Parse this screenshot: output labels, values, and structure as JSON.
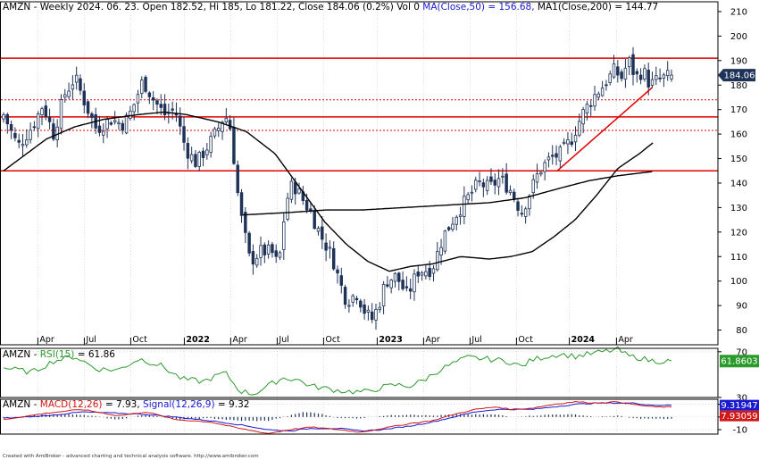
{
  "colors": {
    "background": "#ffffff",
    "frame": "#000000",
    "grid": "#c8c8c8",
    "candle_up": "#ffffff",
    "candle_down": "#1f3358",
    "candle_outline": "#1f3358",
    "ma_line": "#000000",
    "support_resistance": "#e00000",
    "rsi_line": "#2a9a2a",
    "macd_line": "#d01818",
    "signal_line": "#1a1ad0",
    "histogram": "#1f3358",
    "price_badge": "#1f3358",
    "rsi_badge": "#2a9a2a",
    "macd_badge": "#d01818",
    "signal_badge": "#1a1ad0",
    "title_blue": "#1a1ad0",
    "title_red": "#d01818",
    "title_green": "#2a9a2a"
  },
  "header": {
    "main_text": "AMZN - Weekly 2024. 06. 23. Open 182.52, Hi 185, Lo 181.22, Close 184.06 (0.2%) Vol 0",
    "ma50_text": "MA(Close,50) = 156.68,",
    "ma200_text": "MA1(Close,200) = 144.77"
  },
  "rsi_header": {
    "prefix": "AMZN - ",
    "name": "RSI(15)",
    "value_text": " = 61.86"
  },
  "macd_header": {
    "prefix": "AMZN - ",
    "macd_name": "MACD(12,26)",
    "macd_value": " = 7.93, ",
    "signal_name": "Signal(12,26,9)",
    "signal_value": " = 9.32"
  },
  "badges": {
    "price": "184.06",
    "rsi": "61.8603",
    "signal": "9.31947",
    "macd": "7.93059"
  },
  "footer": "Created with AmiBroker - advanced charting and technical analysis software. http://www.amibroker.com",
  "x_axis_labels": [
    {
      "t": 0.048,
      "label": "Apr",
      "bold": false
    },
    {
      "t": 0.113,
      "label": "Jul",
      "bold": false
    },
    {
      "t": 0.178,
      "label": "Oct",
      "bold": false
    },
    {
      "t": 0.253,
      "label": "2022",
      "bold": true
    },
    {
      "t": 0.318,
      "label": "Apr",
      "bold": false
    },
    {
      "t": 0.383,
      "label": "Jul",
      "bold": false
    },
    {
      "t": 0.448,
      "label": "Oct",
      "bold": false
    },
    {
      "t": 0.523,
      "label": "2023",
      "bold": true
    },
    {
      "t": 0.588,
      "label": "Apr",
      "bold": false
    },
    {
      "t": 0.653,
      "label": "Jul",
      "bold": false
    },
    {
      "t": 0.718,
      "label": "Oct",
      "bold": false
    },
    {
      "t": 0.792,
      "label": "2024",
      "bold": true
    },
    {
      "t": 0.858,
      "label": "Apr",
      "bold": false
    }
  ],
  "chart_data": [
    {
      "type": "candlestick",
      "title": "AMZN - Weekly",
      "ylim": [
        74,
        214
      ],
      "y_ticks": [
        80,
        90,
        100,
        110,
        120,
        130,
        140,
        150,
        160,
        170,
        180,
        190,
        200,
        210
      ],
      "close_anchors": [
        [
          0.0,
          168
        ],
        [
          0.02,
          155
        ],
        [
          0.04,
          163
        ],
        [
          0.055,
          172
        ],
        [
          0.07,
          160
        ],
        [
          0.085,
          176
        ],
        [
          0.1,
          183
        ],
        [
          0.115,
          172
        ],
        [
          0.13,
          162
        ],
        [
          0.15,
          166
        ],
        [
          0.168,
          164
        ],
        [
          0.18,
          170
        ],
        [
          0.195,
          182
        ],
        [
          0.21,
          174
        ],
        [
          0.225,
          168
        ],
        [
          0.24,
          170
        ],
        [
          0.255,
          154
        ],
        [
          0.27,
          148
        ],
        [
          0.29,
          157
        ],
        [
          0.3,
          162
        ],
        [
          0.31,
          168
        ],
        [
          0.318,
          162
        ],
        [
          0.33,
          130
        ],
        [
          0.345,
          108
        ],
        [
          0.36,
          112
        ],
        [
          0.375,
          112
        ],
        [
          0.385,
          106
        ],
        [
          0.395,
          132
        ],
        [
          0.405,
          140
        ],
        [
          0.415,
          135
        ],
        [
          0.43,
          128
        ],
        [
          0.445,
          118
        ],
        [
          0.46,
          110
        ],
        [
          0.47,
          100
        ],
        [
          0.48,
          92
        ],
        [
          0.495,
          95
        ],
        [
          0.505,
          88
        ],
        [
          0.515,
          84
        ],
        [
          0.525,
          90
        ],
        [
          0.535,
          100
        ],
        [
          0.55,
          102
        ],
        [
          0.565,
          94
        ],
        [
          0.58,
          104
        ],
        [
          0.6,
          105
        ],
        [
          0.615,
          118
        ],
        [
          0.635,
          128
        ],
        [
          0.65,
          134
        ],
        [
          0.665,
          140
        ],
        [
          0.68,
          138
        ],
        [
          0.695,
          142
        ],
        [
          0.71,
          137
        ],
        [
          0.725,
          128
        ],
        [
          0.735,
          135
        ],
        [
          0.75,
          145
        ],
        [
          0.765,
          150
        ],
        [
          0.78,
          152
        ],
        [
          0.795,
          158
        ],
        [
          0.81,
          168
        ],
        [
          0.825,
          175
        ],
        [
          0.84,
          180
        ],
        [
          0.855,
          186
        ],
        [
          0.865,
          183
        ],
        [
          0.875,
          190
        ],
        [
          0.885,
          183
        ],
        [
          0.895,
          186
        ],
        [
          0.905,
          180
        ],
        [
          0.915,
          182
        ],
        [
          0.935,
          184
        ]
      ],
      "ma50_anchors": [
        [
          0.0,
          145
        ],
        [
          0.06,
          158
        ],
        [
          0.1,
          163
        ],
        [
          0.14,
          166
        ],
        [
          0.19,
          168
        ],
        [
          0.225,
          169
        ],
        [
          0.255,
          168
        ],
        [
          0.3,
          165
        ],
        [
          0.34,
          161
        ],
        [
          0.38,
          152
        ],
        [
          0.415,
          138
        ],
        [
          0.45,
          124
        ],
        [
          0.48,
          115
        ],
        [
          0.51,
          108
        ],
        [
          0.54,
          104
        ],
        [
          0.57,
          106
        ],
        [
          0.6,
          107
        ],
        [
          0.64,
          110
        ],
        [
          0.68,
          109
        ],
        [
          0.71,
          110
        ],
        [
          0.74,
          112
        ],
        [
          0.77,
          118
        ],
        [
          0.8,
          125
        ],
        [
          0.83,
          135
        ],
        [
          0.86,
          146
        ],
        [
          0.89,
          152
        ],
        [
          0.91,
          156.68
        ]
      ],
      "ma200_anchors": [
        [
          0.335,
          127
        ],
        [
          0.4,
          128
        ],
        [
          0.45,
          129
        ],
        [
          0.5,
          129
        ],
        [
          0.56,
          130
        ],
        [
          0.62,
          131
        ],
        [
          0.68,
          132
        ],
        [
          0.73,
          134
        ],
        [
          0.78,
          138
        ],
        [
          0.82,
          141
        ],
        [
          0.86,
          143
        ],
        [
          0.91,
          144.77
        ]
      ],
      "horizontal_levels": [
        {
          "y": 191,
          "style": "solid"
        },
        {
          "y": 174,
          "style": "dotted"
        },
        {
          "y": 167,
          "style": "solid"
        },
        {
          "y": 161.5,
          "style": "dotted"
        },
        {
          "y": 145,
          "style": "solid"
        }
      ],
      "trendline": {
        "t1": 0.775,
        "y1": 145,
        "t2": 0.908,
        "y2": 179
      },
      "last_close": 184.06,
      "ma50_last": 156.68,
      "ma200_last": 144.77
    },
    {
      "type": "line",
      "title": "RSI(15)",
      "ylim": [
        30,
        73
      ],
      "y_ticks": [
        30,
        70
      ],
      "series": [
        {
          "name": "RSI(15)",
          "anchors": [
            [
              0.0,
              56
            ],
            [
              0.04,
              52
            ],
            [
              0.07,
              62
            ],
            [
              0.1,
              66
            ],
            [
              0.13,
              55
            ],
            [
              0.16,
              54
            ],
            [
              0.19,
              64
            ],
            [
              0.22,
              58
            ],
            [
              0.25,
              46
            ],
            [
              0.28,
              44
            ],
            [
              0.31,
              52
            ],
            [
              0.33,
              36
            ],
            [
              0.35,
              33
            ],
            [
              0.37,
              40
            ],
            [
              0.39,
              47
            ],
            [
              0.41,
              46
            ],
            [
              0.43,
              40
            ],
            [
              0.45,
              38
            ],
            [
              0.47,
              36
            ],
            [
              0.49,
              35
            ],
            [
              0.51,
              35
            ],
            [
              0.53,
              39
            ],
            [
              0.55,
              41
            ],
            [
              0.57,
              40
            ],
            [
              0.59,
              46
            ],
            [
              0.61,
              54
            ],
            [
              0.63,
              60
            ],
            [
              0.65,
              65
            ],
            [
              0.67,
              64
            ],
            [
              0.69,
              63
            ],
            [
              0.71,
              61
            ],
            [
              0.725,
              57
            ],
            [
              0.74,
              63
            ],
            [
              0.76,
              66
            ],
            [
              0.78,
              68
            ],
            [
              0.8,
              66
            ],
            [
              0.82,
              68
            ],
            [
              0.84,
              70
            ],
            [
              0.86,
              72
            ],
            [
              0.875,
              66
            ],
            [
              0.89,
              65
            ],
            [
              0.9,
              63
            ],
            [
              0.91,
              61.86
            ]
          ]
        }
      ],
      "last_value": 61.86
    },
    {
      "type": "line+bar",
      "title": "MACD(12,26), Signal(12,26,9)",
      "ylim": [
        -13.5,
        14
      ],
      "y_ticks": [
        -10,
        0,
        10
      ],
      "series": [
        {
          "name": "MACD(12,26)",
          "anchors": [
            [
              0.0,
              -2
            ],
            [
              0.06,
              3
            ],
            [
              0.11,
              6
            ],
            [
              0.16,
              1
            ],
            [
              0.2,
              4
            ],
            [
              0.24,
              -2
            ],
            [
              0.29,
              -4
            ],
            [
              0.33,
              -9
            ],
            [
              0.37,
              -13
            ],
            [
              0.4,
              -10
            ],
            [
              0.43,
              -8
            ],
            [
              0.47,
              -10
            ],
            [
              0.5,
              -12
            ],
            [
              0.53,
              -9
            ],
            [
              0.57,
              -5
            ],
            [
              0.6,
              -3
            ],
            [
              0.63,
              2
            ],
            [
              0.66,
              6
            ],
            [
              0.69,
              8
            ],
            [
              0.71,
              6
            ],
            [
              0.74,
              7
            ],
            [
              0.77,
              10
            ],
            [
              0.8,
              12
            ],
            [
              0.83,
              11
            ],
            [
              0.86,
              12
            ],
            [
              0.88,
              10
            ],
            [
              0.91,
              7.93
            ]
          ]
        },
        {
          "name": "Signal(12,26,9)",
          "anchors": [
            [
              0.0,
              -1
            ],
            [
              0.06,
              1
            ],
            [
              0.11,
              4
            ],
            [
              0.16,
              3
            ],
            [
              0.2,
              2
            ],
            [
              0.24,
              0
            ],
            [
              0.29,
              -3
            ],
            [
              0.33,
              -6
            ],
            [
              0.37,
              -10
            ],
            [
              0.4,
              -11
            ],
            [
              0.43,
              -9
            ],
            [
              0.47,
              -9
            ],
            [
              0.5,
              -11
            ],
            [
              0.53,
              -10
            ],
            [
              0.57,
              -7
            ],
            [
              0.6,
              -4
            ],
            [
              0.63,
              0
            ],
            [
              0.66,
              4
            ],
            [
              0.69,
              6
            ],
            [
              0.71,
              6
            ],
            [
              0.74,
              6
            ],
            [
              0.77,
              8
            ],
            [
              0.8,
              10
            ],
            [
              0.83,
              11
            ],
            [
              0.86,
              11
            ],
            [
              0.88,
              11
            ],
            [
              0.91,
              9.32
            ]
          ]
        }
      ],
      "histogram_anchors": [
        [
          0.0,
          -1
        ],
        [
          0.06,
          2
        ],
        [
          0.11,
          2
        ],
        [
          0.16,
          -2
        ],
        [
          0.2,
          2
        ],
        [
          0.24,
          -2
        ],
        [
          0.29,
          -1
        ],
        [
          0.33,
          -3
        ],
        [
          0.37,
          -3
        ],
        [
          0.4,
          1
        ],
        [
          0.42,
          4
        ],
        [
          0.44,
          3
        ],
        [
          0.47,
          -1
        ],
        [
          0.5,
          -1
        ],
        [
          0.53,
          1
        ],
        [
          0.57,
          2
        ],
        [
          0.6,
          1
        ],
        [
          0.63,
          2
        ],
        [
          0.66,
          2
        ],
        [
          0.69,
          2
        ],
        [
          0.71,
          0
        ],
        [
          0.74,
          1
        ],
        [
          0.77,
          2
        ],
        [
          0.8,
          2
        ],
        [
          0.83,
          0
        ],
        [
          0.86,
          1
        ],
        [
          0.88,
          -1
        ],
        [
          0.91,
          -1.4
        ]
      ],
      "macd_last": 7.93,
      "signal_last": 9.32
    }
  ]
}
